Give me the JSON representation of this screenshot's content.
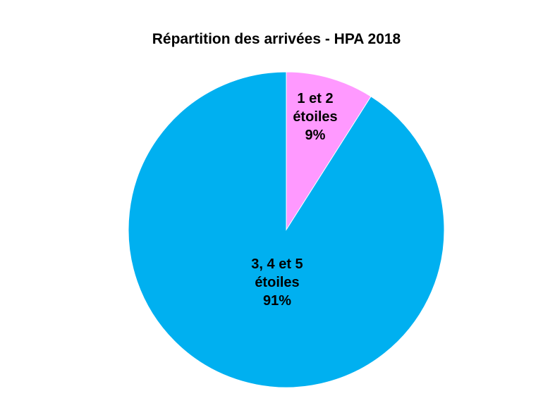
{
  "chart_data": {
    "type": "pie",
    "title": "Répartition des arrivées - HPA 2018",
    "slices": [
      {
        "label_lines": [
          "1 et 2",
          "étoiles",
          "9%"
        ],
        "category": "1 et 2 étoiles",
        "value": 9,
        "color": "#FF99FF"
      },
      {
        "label_lines": [
          "3, 4 et 5",
          "étoiles",
          "91%"
        ],
        "category": "3, 4 et 5 étoiles",
        "value": 91,
        "color": "#00B0F0"
      }
    ],
    "start_angle": "12 o'clock",
    "direction": "clockwise",
    "legend": "none"
  }
}
